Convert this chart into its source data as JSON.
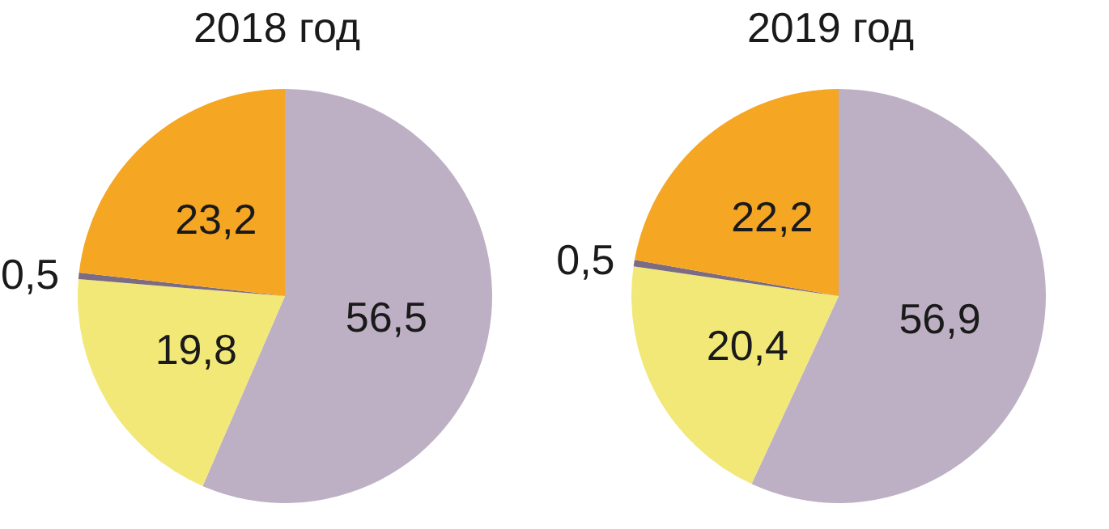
{
  "chart_data": [
    {
      "type": "pie",
      "title": "2018 год",
      "categories": [
        null,
        null,
        null,
        null
      ],
      "values": [
        56.5,
        19.8,
        0.5,
        23.2
      ],
      "value_labels": [
        "56,5",
        "19,8",
        "0,5",
        "23,2"
      ],
      "colors": [
        "#beb0c4",
        "#f2e878",
        "#7b6b83",
        "#f5a623"
      ]
    },
    {
      "type": "pie",
      "title": "2019 год",
      "categories": [
        null,
        null,
        null,
        null
      ],
      "values": [
        56.9,
        20.4,
        0.5,
        22.2
      ],
      "value_labels": [
        "56,9",
        "20,4",
        "0,5",
        "22,2"
      ],
      "colors": [
        "#beb0c4",
        "#f2e878",
        "#7b6b83",
        "#f5a623"
      ]
    }
  ]
}
